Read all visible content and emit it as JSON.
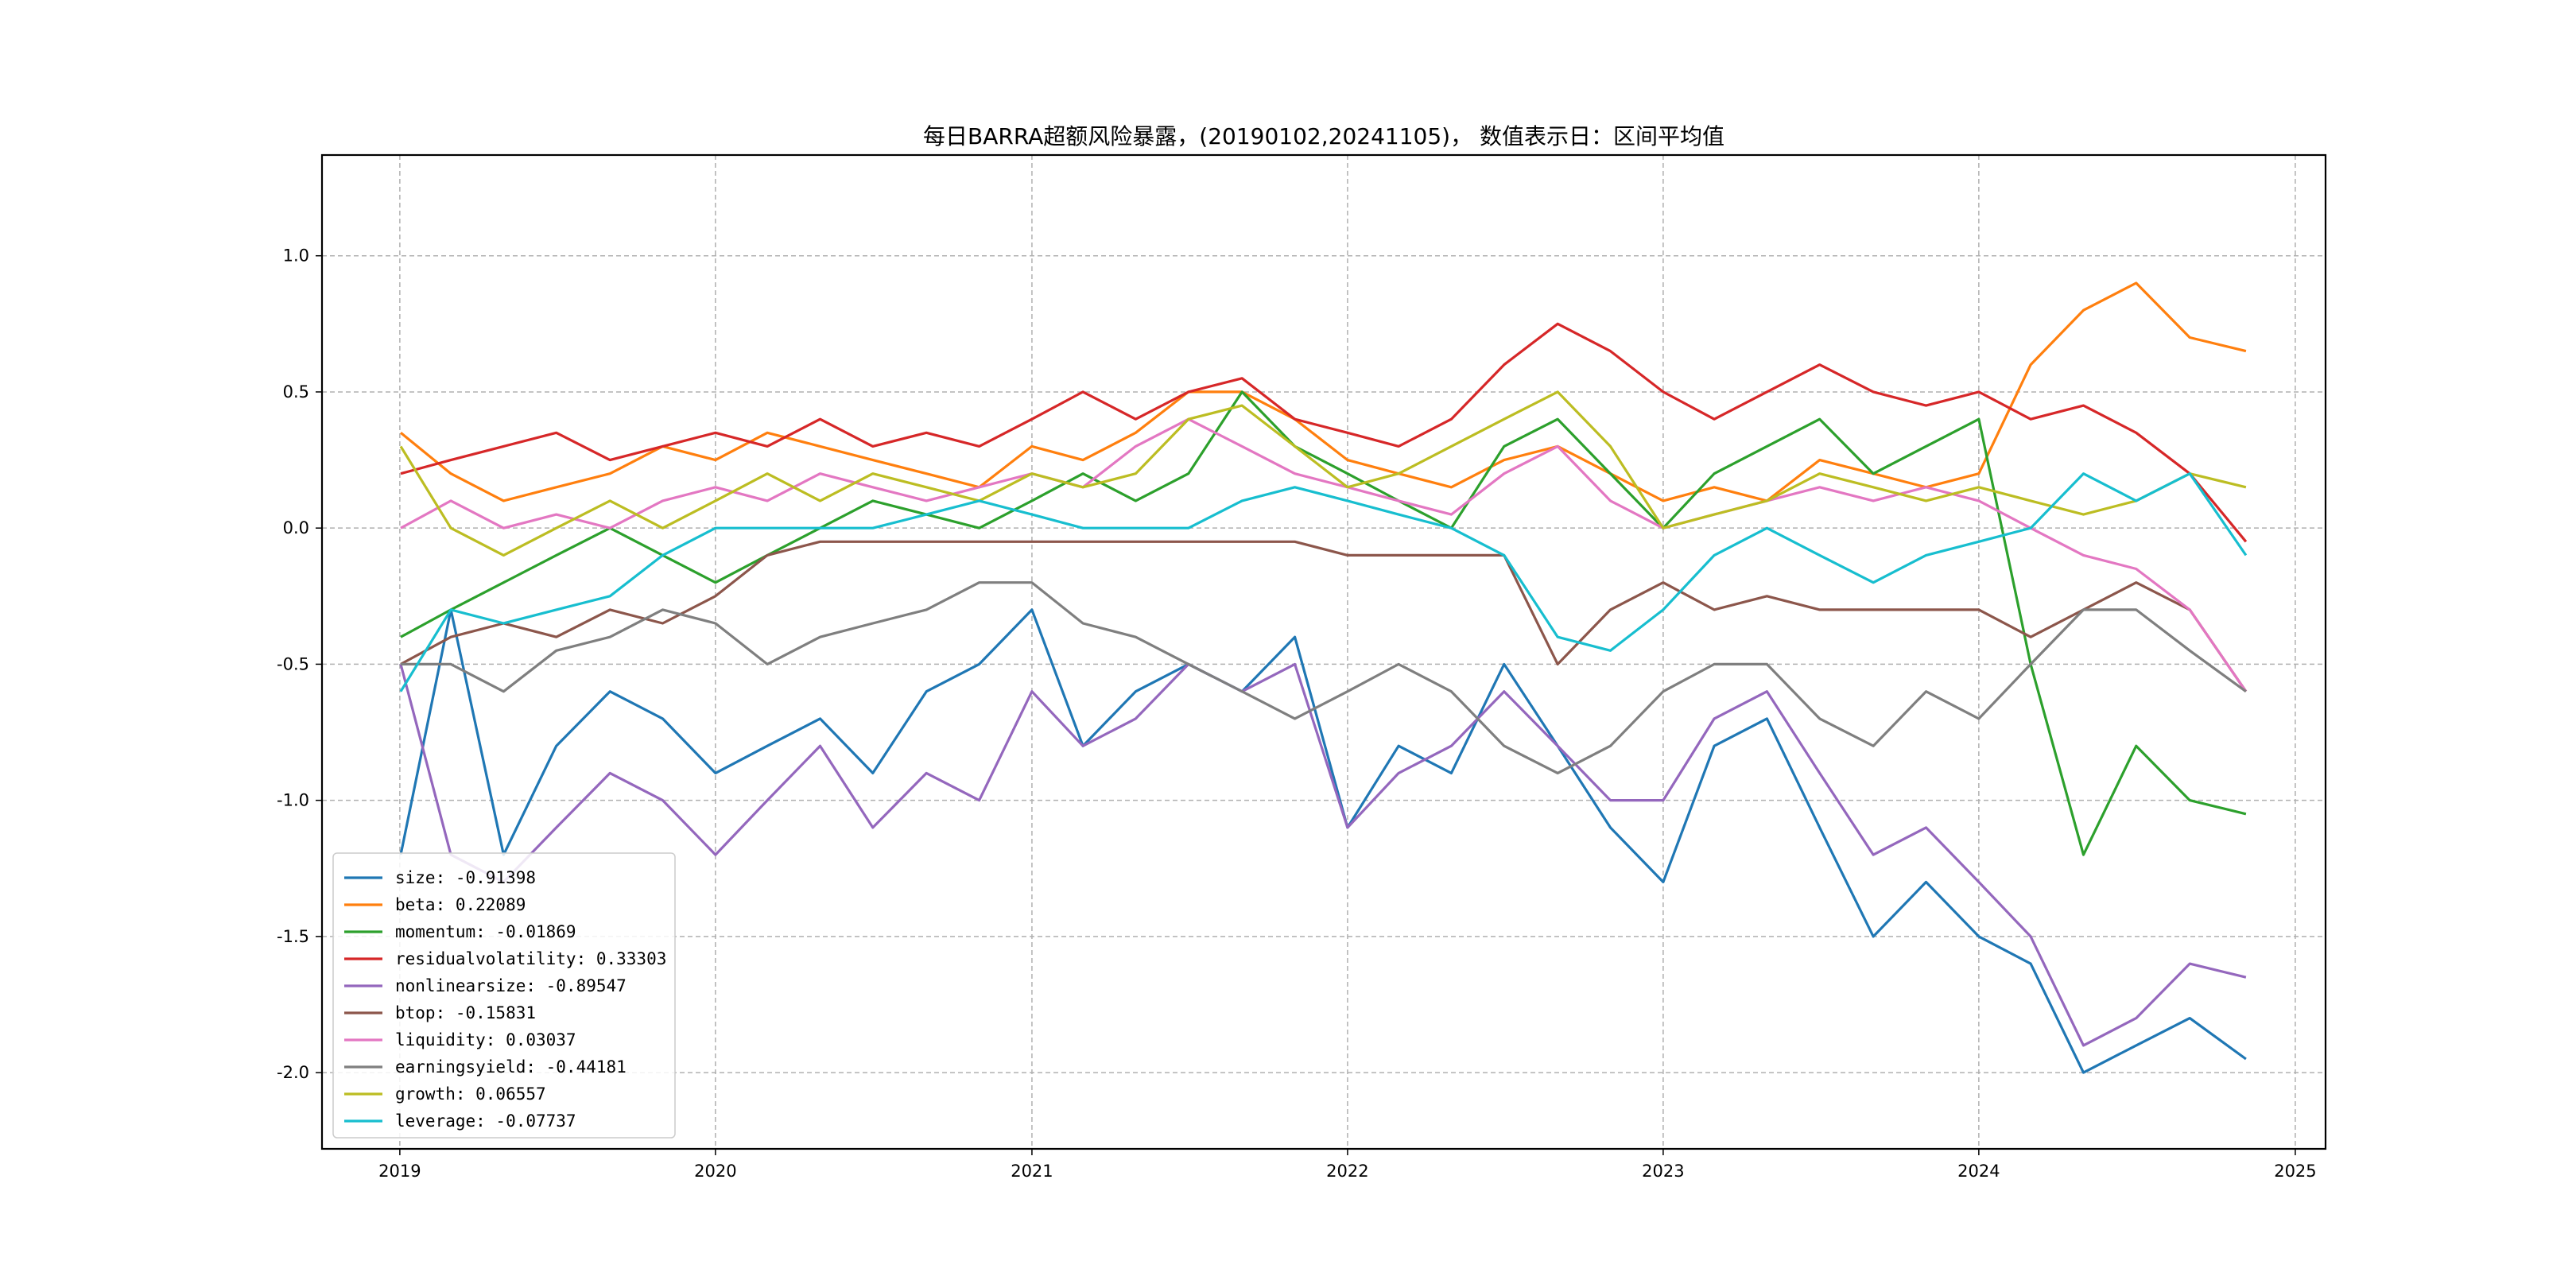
{
  "chart_data": {
    "type": "line",
    "title": "每日BARRA超额风险暴露，(20190102,20241105)， 数值表示日：区间平均值",
    "xlabel": "",
    "ylabel": "",
    "xlim": [
      "2018-10-03",
      "2025-02-05"
    ],
    "ylim": [
      -2.28,
      1.37
    ],
    "x_ticks": [
      "2019",
      "2020",
      "2021",
      "2022",
      "2023",
      "2024",
      "2025"
    ],
    "y_ticks": [
      "1.0",
      "0.5",
      "0.0",
      "-0.5",
      "-1.0",
      "-1.5",
      "-2.0"
    ],
    "grid": true,
    "legend_position": "lower-left",
    "x": [
      "2019-01-02",
      "2019-03-01",
      "2019-05-01",
      "2019-07-01",
      "2019-09-01",
      "2019-11-01",
      "2020-01-01",
      "2020-03-01",
      "2020-05-01",
      "2020-07-01",
      "2020-09-01",
      "2020-11-01",
      "2021-01-01",
      "2021-03-01",
      "2021-05-01",
      "2021-07-01",
      "2021-09-01",
      "2021-11-01",
      "2022-01-01",
      "2022-03-01",
      "2022-05-01",
      "2022-07-01",
      "2022-09-01",
      "2022-11-01",
      "2023-01-01",
      "2023-03-01",
      "2023-05-01",
      "2023-07-01",
      "2023-09-01",
      "2023-11-01",
      "2024-01-01",
      "2024-03-01",
      "2024-05-01",
      "2024-07-01",
      "2024-09-01",
      "2024-11-05"
    ],
    "series": [
      {
        "name": "size: -0.91398",
        "color": "#1f77b4",
        "values": [
          -1.2,
          -0.3,
          -1.2,
          -0.8,
          -0.6,
          -0.7,
          -0.9,
          -0.8,
          -0.7,
          -0.9,
          -0.6,
          -0.5,
          -0.3,
          -0.8,
          -0.6,
          -0.5,
          -0.6,
          -0.4,
          -1.1,
          -0.8,
          -0.9,
          -0.5,
          -0.8,
          -1.1,
          -1.3,
          -0.8,
          -0.7,
          -1.1,
          -1.5,
          -1.3,
          -1.5,
          -1.6,
          -2.0,
          -1.9,
          -1.8,
          -1.95
        ]
      },
      {
        "name": "beta: 0.22089",
        "color": "#ff7f0e",
        "values": [
          0.35,
          0.2,
          0.1,
          0.15,
          0.2,
          0.3,
          0.25,
          0.35,
          0.3,
          0.25,
          0.2,
          0.15,
          0.3,
          0.25,
          0.35,
          0.5,
          0.5,
          0.4,
          0.25,
          0.2,
          0.15,
          0.25,
          0.3,
          0.2,
          0.1,
          0.15,
          0.1,
          0.25,
          0.2,
          0.15,
          0.2,
          0.6,
          0.8,
          0.9,
          0.7,
          0.65
        ]
      },
      {
        "name": "momentum: -0.01869",
        "color": "#2ca02c",
        "values": [
          -0.4,
          -0.3,
          -0.2,
          -0.1,
          0.0,
          -0.1,
          -0.2,
          -0.1,
          0.0,
          0.1,
          0.05,
          0.0,
          0.1,
          0.2,
          0.1,
          0.2,
          0.5,
          0.3,
          0.2,
          0.1,
          0.0,
          0.3,
          0.4,
          0.2,
          0.0,
          0.2,
          0.3,
          0.4,
          0.2,
          0.3,
          0.4,
          -0.5,
          -1.2,
          -0.8,
          -1.0,
          -1.05
        ]
      },
      {
        "name": "residualvolatility: 0.33303",
        "color": "#d62728",
        "values": [
          0.2,
          0.25,
          0.3,
          0.35,
          0.25,
          0.3,
          0.35,
          0.3,
          0.4,
          0.3,
          0.35,
          0.3,
          0.4,
          0.5,
          0.4,
          0.5,
          0.55,
          0.4,
          0.35,
          0.3,
          0.4,
          0.6,
          0.75,
          0.65,
          0.5,
          0.4,
          0.5,
          0.6,
          0.5,
          0.45,
          0.5,
          0.4,
          0.45,
          0.35,
          0.2,
          -0.05
        ]
      },
      {
        "name": "nonlinearsize: -0.89547",
        "color": "#9467bd",
        "values": [
          -0.5,
          -1.2,
          -1.3,
          -1.1,
          -0.9,
          -1.0,
          -1.2,
          -1.0,
          -0.8,
          -1.1,
          -0.9,
          -1.0,
          -0.6,
          -0.8,
          -0.7,
          -0.5,
          -0.6,
          -0.5,
          -1.1,
          -0.9,
          -0.8,
          -0.6,
          -0.8,
          -1.0,
          -1.0,
          -0.7,
          -0.6,
          -0.9,
          -1.2,
          -1.1,
          -1.3,
          -1.5,
          -1.9,
          -1.8,
          -1.6,
          -1.65
        ]
      },
      {
        "name": "btop: -0.15831",
        "color": "#8c564b",
        "values": [
          -0.5,
          -0.4,
          -0.35,
          -0.4,
          -0.3,
          -0.35,
          -0.25,
          -0.1,
          -0.05,
          -0.05,
          -0.05,
          -0.05,
          -0.05,
          -0.05,
          -0.05,
          -0.05,
          -0.05,
          -0.05,
          -0.1,
          -0.1,
          -0.1,
          -0.1,
          -0.5,
          -0.3,
          -0.2,
          -0.3,
          -0.25,
          -0.3,
          -0.3,
          -0.3,
          -0.3,
          -0.4,
          -0.3,
          -0.2,
          -0.3,
          -0.6
        ]
      },
      {
        "name": "liquidity: 0.03037",
        "color": "#e377c2",
        "values": [
          0.0,
          0.1,
          0.0,
          0.05,
          0.0,
          0.1,
          0.15,
          0.1,
          0.2,
          0.15,
          0.1,
          0.15,
          0.2,
          0.15,
          0.3,
          0.4,
          0.3,
          0.2,
          0.15,
          0.1,
          0.05,
          0.2,
          0.3,
          0.1,
          0.0,
          0.05,
          0.1,
          0.15,
          0.1,
          0.15,
          0.1,
          0.0,
          -0.1,
          -0.15,
          -0.3,
          -0.6
        ]
      },
      {
        "name": "earningsyield: -0.44181",
        "color": "#7f7f7f",
        "values": [
          -0.5,
          -0.5,
          -0.6,
          -0.45,
          -0.4,
          -0.3,
          -0.35,
          -0.5,
          -0.4,
          -0.35,
          -0.3,
          -0.2,
          -0.2,
          -0.35,
          -0.4,
          -0.5,
          -0.6,
          -0.7,
          -0.6,
          -0.5,
          -0.6,
          -0.8,
          -0.9,
          -0.8,
          -0.6,
          -0.5,
          -0.5,
          -0.7,
          -0.8,
          -0.6,
          -0.7,
          -0.5,
          -0.3,
          -0.3,
          -0.45,
          -0.6
        ]
      },
      {
        "name": "growth: 0.06557",
        "color": "#bcbd22",
        "values": [
          0.3,
          0.0,
          -0.1,
          0.0,
          0.1,
          0.0,
          0.1,
          0.2,
          0.1,
          0.2,
          0.15,
          0.1,
          0.2,
          0.15,
          0.2,
          0.4,
          0.45,
          0.3,
          0.15,
          0.2,
          0.3,
          0.4,
          0.5,
          0.3,
          0.0,
          0.05,
          0.1,
          0.2,
          0.15,
          0.1,
          0.15,
          0.1,
          0.05,
          0.1,
          0.2,
          0.15
        ]
      },
      {
        "name": "leverage: -0.07737",
        "color": "#17becf",
        "values": [
          -0.6,
          -0.3,
          -0.35,
          -0.3,
          -0.25,
          -0.1,
          0.0,
          0.0,
          0.0,
          0.0,
          0.05,
          0.1,
          0.05,
          0.0,
          0.0,
          0.0,
          0.1,
          0.15,
          0.1,
          0.05,
          0.0,
          -0.1,
          -0.4,
          -0.45,
          -0.3,
          -0.1,
          0.0,
          -0.1,
          -0.2,
          -0.1,
          -0.05,
          0.0,
          0.2,
          0.1,
          0.2,
          -0.1
        ]
      }
    ]
  }
}
